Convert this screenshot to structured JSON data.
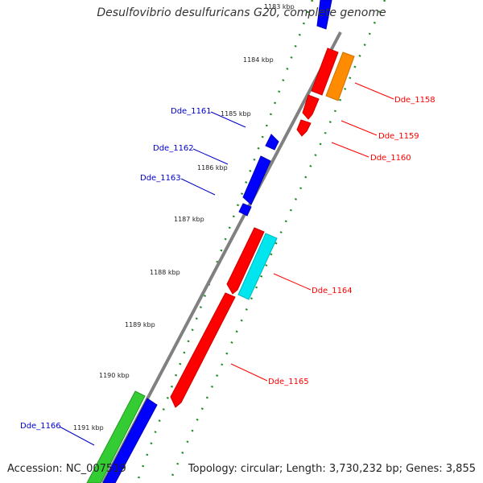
{
  "title": "Desulfovibrio desulfuricans G20, complete genome",
  "accession": "Accession: NC_007519",
  "topology": "Topology: circular; Length: 3,730,232 bp; Genes: 3,855",
  "ticks": [
    "1183 kbp",
    "1184 kbp",
    "1185 kbp",
    "1186 kbp",
    "1187 kbp",
    "1188 kbp",
    "1189 kbp",
    "1190 kbp",
    "1191 kbp"
  ],
  "genes": [
    {
      "name": "Dde_1158",
      "strand": "forward",
      "color": "#ff0000"
    },
    {
      "name": "Dde_1159",
      "strand": "forward",
      "color": "#ff0000"
    },
    {
      "name": "Dde_1160",
      "strand": "forward",
      "color": "#ff0000"
    },
    {
      "name": "Dde_1161",
      "strand": "reverse",
      "color": "#0000ff"
    },
    {
      "name": "Dde_1162",
      "strand": "reverse",
      "color": "#0000ff"
    },
    {
      "name": "Dde_1163",
      "strand": "reverse",
      "color": "#0000ff"
    },
    {
      "name": "Dde_1164",
      "strand": "forward",
      "color": "#ff0000"
    },
    {
      "name": "Dde_1165",
      "strand": "forward",
      "color": "#ff0000"
    },
    {
      "name": "Dde_1166",
      "strand": "reverse",
      "color": "#0000ff"
    }
  ],
  "colors": {
    "forward_gene": "#ff0000",
    "reverse_gene": "#0000ff",
    "feature_orange": "#ff8c00",
    "feature_cyan": "#00e5ee",
    "feature_green": "#33cc33",
    "backbone": "#808080",
    "gc_ticks": "#228b22",
    "forward_label": "#ff0000",
    "reverse_label": "#0000cc"
  }
}
